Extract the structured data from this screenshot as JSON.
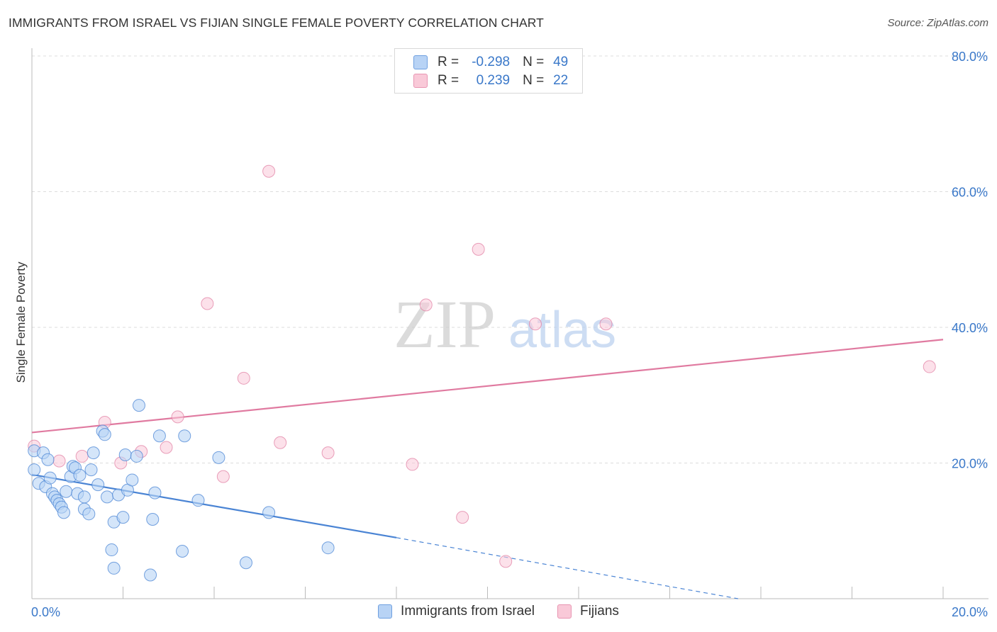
{
  "header": {
    "title": "IMMIGRANTS FROM ISRAEL VS FIJIAN SINGLE FEMALE POVERTY CORRELATION CHART",
    "source": "Source: ZipAtlas.com"
  },
  "watermark": {
    "zip": "ZIP",
    "atlas": "atlas"
  },
  "legend": {
    "rows": [
      {
        "r_label": "R =",
        "r_value": "-0.298",
        "n_label": "N =",
        "n_value": "49",
        "fill": "#b8d3f5",
        "stroke": "#6fa0e0"
      },
      {
        "r_label": "R =",
        "r_value": "0.239",
        "n_label": "N =",
        "n_value": "22",
        "fill": "#f9c9d8",
        "stroke": "#e895b2"
      }
    ]
  },
  "bottom_legend": {
    "israel": "Immigrants from Israel",
    "fijians": "Fijians"
  },
  "chart_data": {
    "type": "scatter",
    "title": "IMMIGRANTS FROM ISRAEL VS FIJIAN SINGLE FEMALE POVERTY CORRELATION CHART",
    "xlabel": "",
    "ylabel": "Single Female Poverty",
    "xlim": [
      0,
      20
    ],
    "ylim": [
      0,
      80
    ],
    "x_tick_labels": [
      "0.0%",
      "20.0%"
    ],
    "y_ticks": [
      20,
      40,
      60,
      80
    ],
    "y_tick_labels": [
      "20.0%",
      "40.0%",
      "60.0%",
      "80.0%"
    ],
    "grid": true,
    "legend_position": "top-center",
    "colors": {
      "israel": "#4a84d4",
      "fijians": "#e07aa0",
      "israel_fill": "#b8d3f5",
      "fijians_fill": "#f9c9d8"
    },
    "series": [
      {
        "name": "Immigrants from Israel",
        "color": "#4a84d4",
        "points": [
          [
            0.05,
            21.8
          ],
          [
            0.05,
            19.0
          ],
          [
            0.15,
            17.0
          ],
          [
            0.25,
            21.5
          ],
          [
            0.3,
            16.5
          ],
          [
            0.35,
            20.5
          ],
          [
            0.4,
            17.8
          ],
          [
            0.45,
            15.5
          ],
          [
            0.5,
            15.0
          ],
          [
            0.55,
            14.5
          ],
          [
            0.6,
            14.0
          ],
          [
            0.65,
            13.5
          ],
          [
            0.7,
            12.7
          ],
          [
            0.75,
            15.8
          ],
          [
            0.85,
            18.0
          ],
          [
            0.9,
            19.5
          ],
          [
            0.95,
            19.3
          ],
          [
            1.0,
            15.5
          ],
          [
            1.05,
            18.2
          ],
          [
            1.15,
            15.0
          ],
          [
            1.15,
            13.2
          ],
          [
            1.25,
            12.5
          ],
          [
            1.3,
            19.0
          ],
          [
            1.35,
            21.5
          ],
          [
            1.45,
            16.8
          ],
          [
            1.55,
            24.7
          ],
          [
            1.6,
            24.2
          ],
          [
            1.65,
            15.0
          ],
          [
            1.75,
            7.2
          ],
          [
            1.8,
            4.5
          ],
          [
            1.8,
            11.3
          ],
          [
            1.9,
            15.3
          ],
          [
            2.0,
            12.0
          ],
          [
            2.05,
            21.2
          ],
          [
            2.1,
            16.0
          ],
          [
            2.2,
            17.5
          ],
          [
            2.3,
            21.0
          ],
          [
            2.35,
            28.5
          ],
          [
            2.6,
            3.5
          ],
          [
            2.65,
            11.7
          ],
          [
            2.7,
            15.6
          ],
          [
            2.8,
            24.0
          ],
          [
            3.3,
            7.0
          ],
          [
            3.35,
            24.0
          ],
          [
            3.65,
            14.5
          ],
          [
            4.1,
            20.8
          ],
          [
            4.7,
            5.3
          ],
          [
            5.2,
            12.7
          ],
          [
            6.5,
            7.5
          ]
        ],
        "trend": {
          "x": [
            0.0,
            8.0
          ],
          "y": [
            18.3,
            9.0
          ],
          "dashed_to": {
            "x": 15.5,
            "y": 0.0
          }
        }
      },
      {
        "name": "Fijians",
        "color": "#e07aa0",
        "points": [
          [
            0.05,
            22.5
          ],
          [
            0.6,
            20.3
          ],
          [
            1.1,
            21.0
          ],
          [
            1.6,
            26.0
          ],
          [
            1.95,
            20.0
          ],
          [
            2.4,
            21.7
          ],
          [
            2.95,
            22.3
          ],
          [
            3.2,
            26.8
          ],
          [
            3.85,
            43.5
          ],
          [
            4.2,
            18.0
          ],
          [
            4.65,
            32.5
          ],
          [
            5.2,
            63.0
          ],
          [
            5.45,
            23.0
          ],
          [
            6.5,
            21.5
          ],
          [
            8.35,
            19.8
          ],
          [
            8.65,
            43.3
          ],
          [
            9.45,
            12.0
          ],
          [
            9.8,
            51.5
          ],
          [
            10.4,
            5.5
          ],
          [
            11.05,
            40.5
          ],
          [
            12.6,
            40.5
          ],
          [
            19.7,
            34.2
          ]
        ],
        "trend": {
          "x": [
            0.0,
            20.0
          ],
          "y": [
            24.5,
            38.2
          ]
        }
      }
    ]
  }
}
